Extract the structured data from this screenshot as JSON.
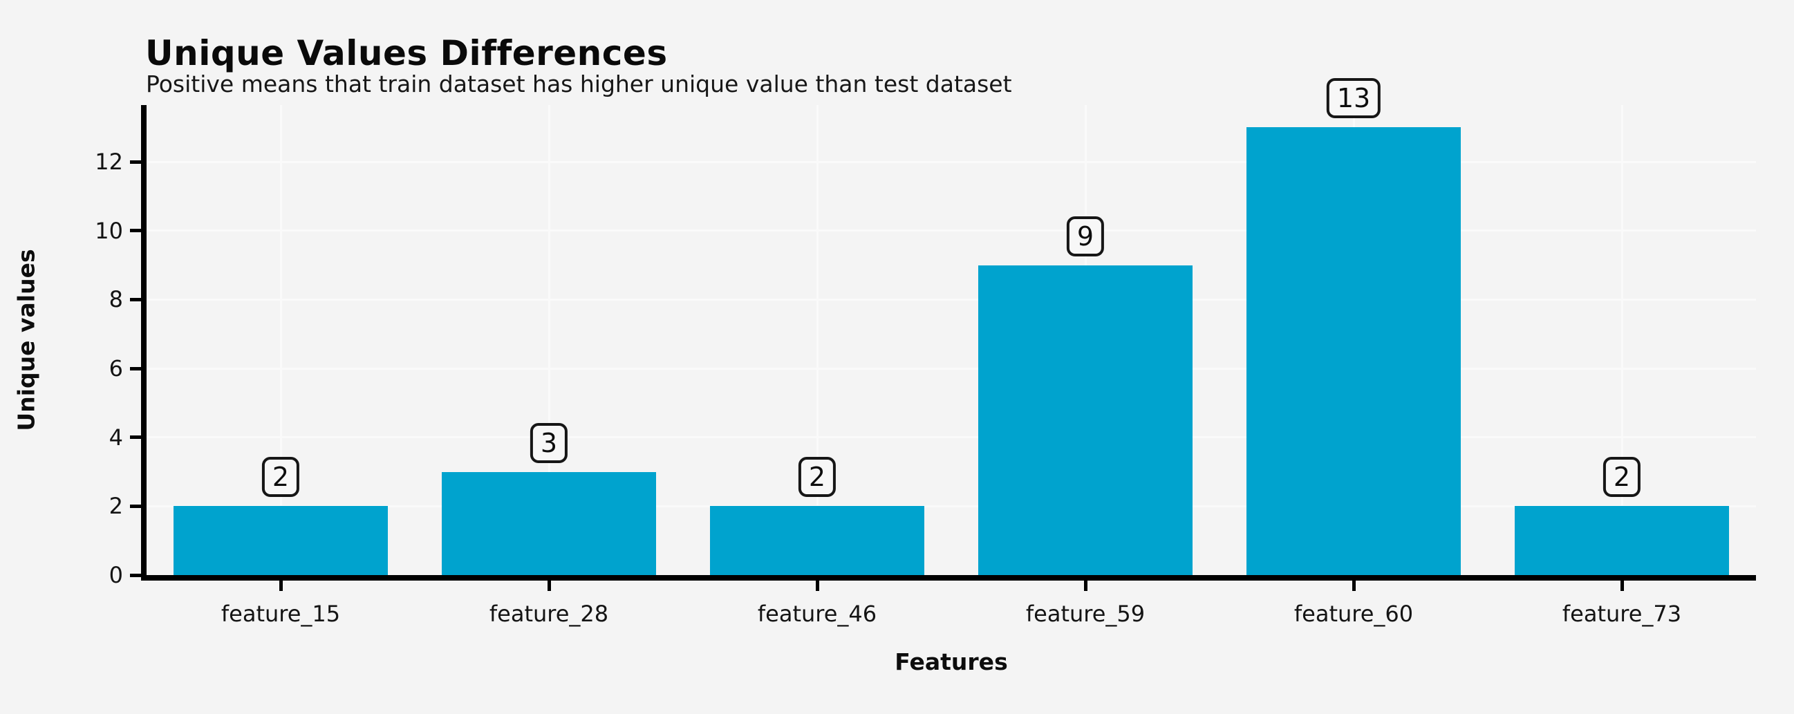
{
  "page": {
    "background_color": "#f4f4f4"
  },
  "chart_data": {
    "type": "bar",
    "title": "Unique Values Differences",
    "subtitle": "Positive means that train dataset has higher unique value than test dataset",
    "xlabel": "Features",
    "ylabel": "Unique values",
    "categories": [
      "feature_15",
      "feature_28",
      "feature_46",
      "feature_59",
      "feature_60",
      "feature_73"
    ],
    "values": [
      2,
      3,
      2,
      9,
      13,
      2
    ],
    "bar_labels": [
      "2",
      "3",
      "2",
      "9",
      "13",
      "2"
    ],
    "yticks": [
      0,
      2,
      4,
      6,
      8,
      10,
      12
    ],
    "ylim": [
      0,
      13.65
    ],
    "grid": true,
    "legend": "none",
    "bar_color": "#00a3ce",
    "grid_color": "#fafafa",
    "axis_color": "#000000",
    "text_color": "#111111",
    "value_label_box": {
      "fill": "#f7f7f7",
      "border_color": "#161616"
    }
  }
}
